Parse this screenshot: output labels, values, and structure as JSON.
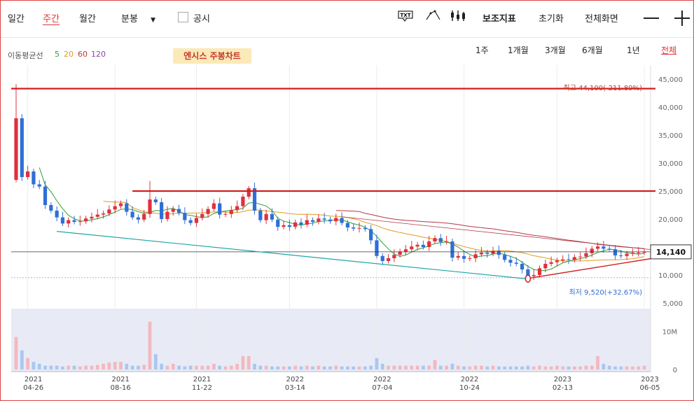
{
  "toolbar": {
    "tabs": [
      "일간",
      "주간",
      "월간"
    ],
    "active_tab": "주간",
    "minute_label": "분봉",
    "disclosure_label": "공시",
    "icons": [
      "txt-icon",
      "drawing-icon",
      "candle-settings-icon"
    ],
    "actions": [
      "보조지표",
      "초기화",
      "전체화면"
    ]
  },
  "ma_legend": {
    "label": "이동평균선",
    "periods": [
      {
        "value": "5",
        "color": "#2e9e3a"
      },
      {
        "value": "20",
        "color": "#e09a1e"
      },
      {
        "value": "60",
        "color": "#c0392b"
      },
      {
        "value": "120",
        "color": "#8e44ad"
      }
    ]
  },
  "ranges": [
    "1주",
    "1개월",
    "3개월",
    "6개월",
    "1년",
    "전체"
  ],
  "active_range": "전체",
  "annotation_title": "엔시스 주봉차트",
  "colors": {
    "up": "#e0303d",
    "down": "#2f6fd6",
    "resistance": "#d11f1f",
    "support": "#21a6a6"
  },
  "chart_data": {
    "type": "candlestick",
    "y_ticks": [
      "45,000",
      "40,000",
      "35,000",
      "30,000",
      "25,000",
      "20,000",
      "15,000",
      "10,000",
      "5,000"
    ],
    "volume_ticks": [
      "10M",
      "0"
    ],
    "x_ticks": [
      {
        "year": "2021",
        "date": "04-26"
      },
      {
        "year": "2021",
        "date": "08-16"
      },
      {
        "year": "2021",
        "date": "11-22"
      },
      {
        "year": "2022",
        "date": "03-14"
      },
      {
        "year": "2022",
        "date": "07-04"
      },
      {
        "year": "2022",
        "date": "10-24"
      },
      {
        "year": "2023",
        "date": "02-13"
      },
      {
        "year": "2023",
        "date": "06-05"
      }
    ],
    "ylim": [
      5000,
      45000
    ],
    "high_label": "최고 44,100(-211.89%)",
    "low_label": "최저 9,520(+32.67%)",
    "last_price": "14,140",
    "last_value": 14140,
    "resistance_levels": [
      43300,
      25000
    ],
    "closes": [
      38000,
      27500,
      28500,
      26200,
      25800,
      22500,
      21500,
      20300,
      19200,
      19800,
      19500,
      19600,
      20100,
      20400,
      20800,
      21000,
      21700,
      22300,
      22800,
      21300,
      20300,
      19900,
      20900,
      23500,
      23000,
      20000,
      21300,
      21800,
      21100,
      19800,
      19300,
      20200,
      20900,
      21800,
      22800,
      20800,
      20900,
      21600,
      22300,
      24000,
      25500,
      21500,
      19800,
      20900,
      19900,
      18600,
      18900,
      18600,
      19400,
      19000,
      19800,
      19500,
      20100,
      19900,
      19600,
      20200,
      19300,
      18500,
      18300,
      18400,
      18200,
      16200,
      13400,
      12500,
      13000,
      13600,
      14200,
      14600,
      15100,
      15400,
      15000,
      16000,
      16600,
      15900,
      16000,
      13100,
      13400,
      12900,
      13000,
      13700,
      14000,
      13800,
      14300,
      13600,
      12700,
      12200,
      12000,
      11000,
      9800,
      10000,
      11200,
      12000,
      12300,
      12600,
      12800,
      12700,
      13200,
      13300,
      13900,
      14700,
      15100,
      14700,
      14600,
      13500,
      13400,
      13800,
      14000,
      14000,
      14140
    ],
    "volumes": [
      8.5,
      5,
      3,
      2,
      1.5,
      1,
      1,
      1,
      0.8,
      1,
      1,
      0.8,
      1,
      1,
      1.2,
      1.5,
      1.8,
      2,
      2,
      1.5,
      1,
      1,
      1.2,
      12.5,
      4,
      1.5,
      1,
      1.5,
      1,
      0.8,
      1,
      1,
      1,
      1,
      1.5,
      1,
      0.8,
      1,
      1.5,
      3.5,
      3.5,
      1.5,
      1,
      1,
      0.8,
      0.8,
      0.8,
      0.8,
      1,
      0.8,
      1,
      0.8,
      1,
      0.8,
      0.8,
      1,
      0.8,
      0.8,
      0.8,
      0.8,
      0.8,
      1,
      3,
      1.5,
      1,
      1,
      1,
      1,
      1,
      1,
      1,
      1,
      2.5,
      1,
      1,
      1.5,
      1,
      0.8,
      0.8,
      1,
      1,
      0.8,
      1,
      0.8,
      0.8,
      0.8,
      0.8,
      0.8,
      1,
      0.8,
      1,
      0.8,
      0.8,
      1,
      0.8,
      0.8,
      0.8,
      0.8,
      1,
      1,
      3.5,
      1.5,
      1,
      0.8,
      0.8,
      0.8,
      0.8,
      0.8,
      1
    ]
  }
}
